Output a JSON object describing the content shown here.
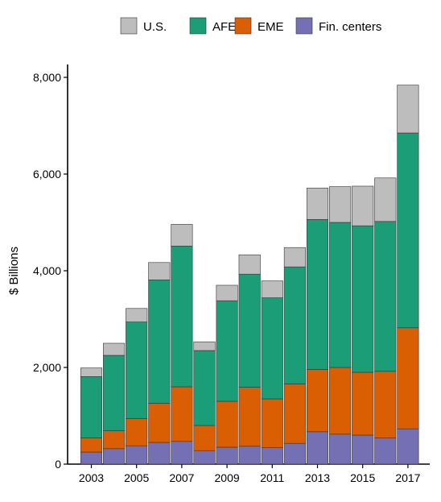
{
  "chart_data": {
    "type": "bar",
    "stacked": true,
    "ylabel": "$ Billions",
    "xlabel": "",
    "ylim": [
      0,
      8000
    ],
    "yticks": [
      0,
      2000,
      4000,
      6000,
      8000
    ],
    "ytick_labels": [
      "0",
      "2,000",
      "4,000",
      "6,000",
      "8,000"
    ],
    "categories": [
      2003,
      2004,
      2005,
      2006,
      2007,
      2008,
      2009,
      2010,
      2011,
      2012,
      2013,
      2014,
      2015,
      2016,
      2017
    ],
    "xtick_labels": [
      "2003",
      "2005",
      "2007",
      "2009",
      "2011",
      "2013",
      "2015",
      "2017"
    ],
    "legend_position": "top",
    "grid": false,
    "series": [
      {
        "name": "Fin. centers",
        "color": "#7570b3",
        "values": [
          250,
          320,
          380,
          450,
          470,
          280,
          350,
          370,
          340,
          430,
          670,
          620,
          600,
          540,
          730
        ]
      },
      {
        "name": "EME",
        "color": "#d95f02",
        "values": [
          290,
          370,
          560,
          810,
          1130,
          520,
          950,
          1220,
          1010,
          1230,
          1290,
          1380,
          1300,
          1380,
          2090
        ]
      },
      {
        "name": "AFE",
        "color": "#1b9e77",
        "values": [
          1270,
          1560,
          2000,
          2550,
          2910,
          1550,
          2080,
          2340,
          2090,
          2420,
          3100,
          3000,
          3030,
          3100,
          4030
        ]
      },
      {
        "name": "U.S.",
        "color": "#bdbdbd",
        "values": [
          180,
          250,
          280,
          360,
          450,
          180,
          320,
          400,
          350,
          400,
          650,
          740,
          820,
          900,
          990
        ]
      }
    ],
    "legend": [
      "U.S.",
      "AFE",
      "EME",
      "Fin. centers"
    ]
  }
}
